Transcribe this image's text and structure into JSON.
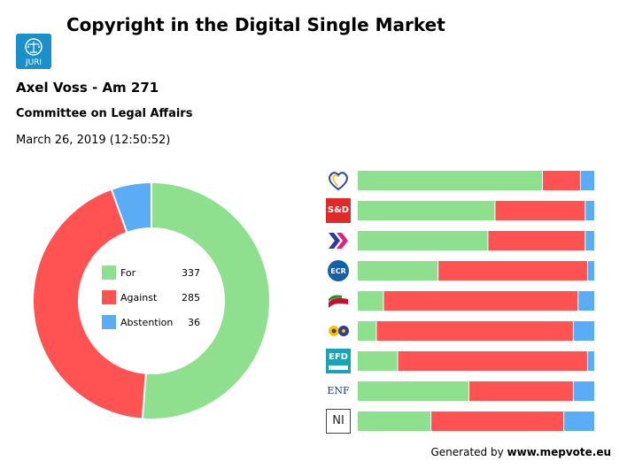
{
  "header": {
    "title": "Copyright in the Digital Single Market",
    "logo_text": "JURI",
    "subtitle": "Axel Voss - Am 271",
    "committee": "Committee on Legal Affairs",
    "date": "March 26, 2019 (12:50:52)"
  },
  "footer": {
    "prefix": "Generated by",
    "site": "www.mepvote.eu"
  },
  "colors": {
    "for": "#8ee08e",
    "against": "#ff5252",
    "abstention": "#5aacf5"
  },
  "chart_data": [
    {
      "type": "pie",
      "title": "",
      "categories": [
        "For",
        "Against",
        "Abstention"
      ],
      "values": [
        337,
        285,
        36
      ]
    },
    {
      "type": "bar",
      "orientation": "horizontal",
      "stacked": "percent",
      "categories": [
        "EPP",
        "S&D",
        "RE",
        "ECR",
        "GUE/NGL",
        "Greens/EFA",
        "EFDD",
        "ENF",
        "NI"
      ],
      "series": [
        {
          "name": "For",
          "values": [
            78,
            58,
            55,
            34,
            11,
            8,
            17,
            47,
            31
          ]
        },
        {
          "name": "Against",
          "values": [
            16,
            38,
            41,
            63,
            82,
            83,
            80,
            44,
            56
          ]
        },
        {
          "name": "Abstention",
          "values": [
            6,
            4,
            4,
            3,
            7,
            9,
            3,
            9,
            13
          ]
        }
      ],
      "xlim": [
        0,
        100
      ]
    }
  ],
  "parties": [
    {
      "icon": "epp-heart-icon",
      "label": ""
    },
    {
      "icon": "sd-logo-icon",
      "label": "S&D"
    },
    {
      "icon": "renew-chevrons-icon",
      "label": ""
    },
    {
      "icon": "ecr-logo-icon",
      "label": "ECR"
    },
    {
      "icon": "gue-flag-icon",
      "label": ""
    },
    {
      "icon": "greens-logo-icon",
      "label": ""
    },
    {
      "icon": "efdd-logo-icon",
      "label": "EFD"
    },
    {
      "icon": "enf-logo-icon",
      "label": "ENF"
    },
    {
      "icon": "ni-logo-icon",
      "label": "NI"
    }
  ]
}
